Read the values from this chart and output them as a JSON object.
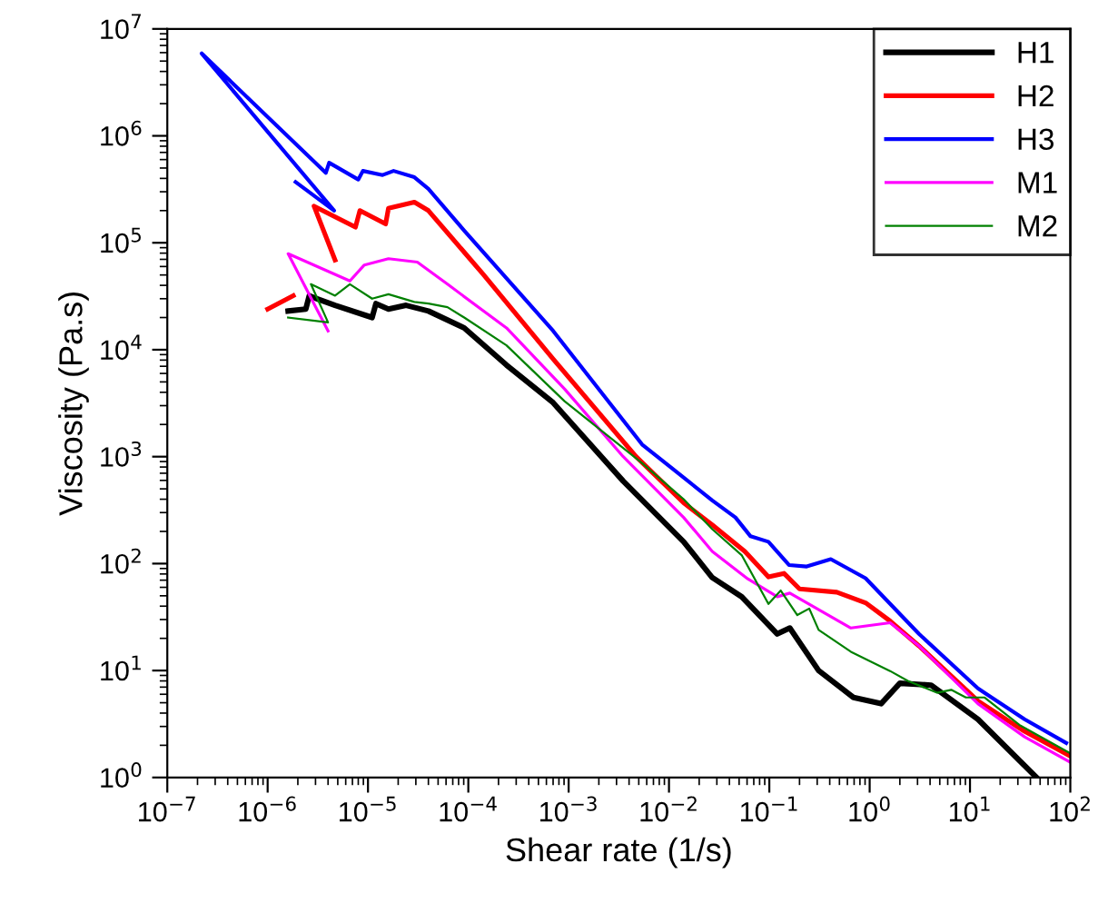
{
  "chart_data": {
    "type": "line",
    "xlabel": "Shear rate (1/s)",
    "ylabel": "Viscosity (Pa.s)",
    "log": "xy",
    "legend": "top right",
    "grid": false,
    "xlim": [
      1e-07,
      100
    ],
    "ylim": [
      1,
      10000000.0
    ],
    "xticks": [
      {
        "value": 1e-07,
        "label": "10$^{−7}$"
      },
      {
        "value": 1e-06,
        "label": "10$^{−6}$"
      },
      {
        "value": 1e-05,
        "label": "10$^{−5}$"
      },
      {
        "value": 0.0001,
        "label": "10$^{−4}$"
      },
      {
        "value": 0.001,
        "label": "10$^{−3}$"
      },
      {
        "value": 0.01,
        "label": "10$^{−2}$"
      },
      {
        "value": 0.1,
        "label": "10$^{−1}$"
      },
      {
        "value": 1,
        "label": "10$^{0}$"
      },
      {
        "value": 10,
        "label": "10$^{1}$"
      },
      {
        "value": 100,
        "label": "10$^{2}$"
      }
    ],
    "yticks": [
      {
        "value": 1,
        "label": "10$^{0}$"
      },
      {
        "value": 10,
        "label": "10$^{1}$"
      },
      {
        "value": 100,
        "label": "10$^{2}$"
      },
      {
        "value": 1000,
        "label": "10$^{3}$"
      },
      {
        "value": 10000,
        "label": "10$^{4}$"
      },
      {
        "value": 100000,
        "label": "10$^{5}$"
      },
      {
        "value": 1000000,
        "label": "10$^{6}$"
      },
      {
        "value": 10000000,
        "label": "10$^{7}$"
      }
    ],
    "series": [
      {
        "name": "H1",
        "color": "#000000",
        "x": [
          1.6e-06,
          2.4e-06,
          2.6e-06,
          3.1e-06,
          4.7e-06,
          1.1e-05,
          1.2e-05,
          1.6e-05,
          2.4e-05,
          4e-05,
          9.1e-05,
          0.00024,
          0.0007,
          0.0035,
          0.014,
          0.027,
          0.053,
          0.12,
          0.16,
          0.31,
          0.69,
          1.3,
          2.0,
          4.1,
          12,
          46
        ],
        "values": [
          23000.0,
          24000.0,
          32000.0,
          30000.0,
          26000.0,
          20000.0,
          27000.0,
          24000.0,
          26000.0,
          23000.0,
          16000.0,
          7200.0,
          3200.0,
          590.0,
          160.0,
          74,
          49,
          22,
          25,
          10,
          5.6,
          4.9,
          7.6,
          7.3,
          3.5,
          1.0
        ]
      },
      {
        "name": "H2",
        "color": "#ff0000",
        "x": [
          1e-06,
          1.8e-06,
          null,
          4.7e-06,
          2.9e-06,
          7.5e-06,
          8.3e-06,
          1.5e-05,
          1.6e-05,
          2.9e-05,
          4e-05,
          0.00014,
          0.0007,
          0.0047,
          0.014,
          0.027,
          0.057,
          0.098,
          0.14,
          0.2,
          0.47,
          0.91,
          1.6,
          3.1,
          12,
          35,
          98
        ],
        "values": [
          24000.0,
          32000.0,
          null,
          69000.0,
          220000.0,
          140000.0,
          200000.0,
          150000.0,
          210000.0,
          240000.0,
          200000.0,
          51000.0,
          8200.0,
          1000.0,
          370.0,
          230.0,
          130.0,
          75,
          81,
          58,
          54,
          43,
          29,
          17,
          5.2,
          2.7,
          1.6
        ]
      },
      {
        "name": "H3",
        "color": "#0000ff",
        "x": [
          1.9e-06,
          4.6e-06,
          2.2e-07,
          3.8e-06,
          4.1e-06,
          8e-06,
          8.9e-06,
          1.4e-05,
          1.8e-05,
          2.9e-05,
          4e-05,
          9.1e-05,
          0.0007,
          0.0054,
          0.027,
          0.046,
          0.065,
          0.098,
          0.157,
          0.236,
          0.41,
          0.91,
          3.1,
          12,
          35,
          91
        ],
        "values": [
          370000.0,
          200000.0,
          5900000.0,
          450000.0,
          560000.0,
          390000.0,
          470000.0,
          430000.0,
          470000.0,
          410000.0,
          320000.0,
          130000.0,
          15000.0,
          1300.0,
          390.0,
          270.0,
          180.0,
          160.0,
          97,
          94,
          110,
          73,
          22,
          6.8,
          3.5,
          2.1
        ]
      },
      {
        "name": "M1",
        "color": "#ff00ff",
        "x": [
          4e-06,
          1.6e-06,
          6.6e-06,
          9.2e-06,
          1.6e-05,
          3.1e-05,
          6.2e-05,
          0.00024,
          0.00091,
          0.0035,
          0.014,
          0.027,
          0.061,
          0.12,
          0.16,
          0.65,
          1.6,
          3.1,
          12,
          35,
          98
        ],
        "values": [
          15000.0,
          79000.0,
          44000.0,
          62000.0,
          71000.0,
          66000.0,
          41000.0,
          16000.0,
          4300.0,
          1000.0,
          270.0,
          130.0,
          72,
          49,
          53,
          25,
          28,
          17,
          4.9,
          2.4,
          1.4
        ]
      },
      {
        "name": "M2",
        "color": "#008000",
        "x": [
          1.6e-06,
          4e-06,
          2.7e-06,
          4.7e-06,
          6.6e-06,
          1.1e-05,
          1.6e-05,
          2.9e-05,
          4e-05,
          6.2e-05,
          9.1e-05,
          0.00024,
          0.00091,
          0.0054,
          0.014,
          0.027,
          0.053,
          0.098,
          0.13,
          0.19,
          0.25,
          0.31,
          0.65,
          1.6,
          2.4,
          4.7,
          6.5,
          9.1,
          14,
          31,
          98
        ],
        "values": [
          20000.0,
          18000.0,
          41000.0,
          32000.0,
          41000.0,
          30000.0,
          33000.0,
          28000.0,
          27000.0,
          25000.0,
          20000.0,
          11000.0,
          3300.0,
          870.0,
          400.0,
          210.0,
          120.0,
          42,
          56,
          33,
          38,
          24,
          15,
          9.9,
          8.0,
          6.2,
          6.6,
          5.6,
          5.6,
          3.1,
          1.7
        ]
      }
    ]
  }
}
